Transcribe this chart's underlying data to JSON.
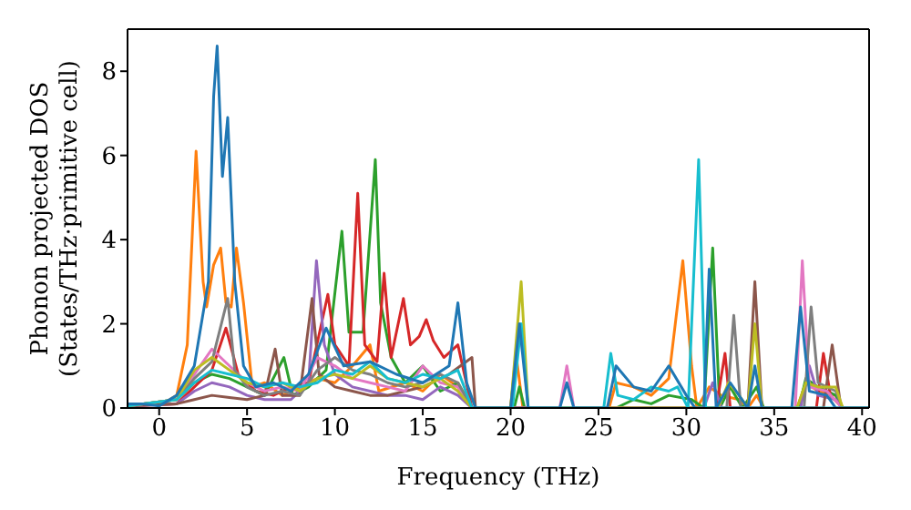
{
  "chart_data": {
    "type": "line",
    "xlabel": "Frequency (THz)",
    "ylabel": "Phonon projected DOS\n(States/THz·primitive cell)",
    "xlim": [
      -1.8,
      40.4
    ],
    "xticks": [
      0,
      5,
      10,
      15,
      20,
      25,
      30,
      35,
      40
    ],
    "ylim": [
      0,
      9
    ],
    "yticks": [
      0,
      2,
      4,
      6,
      8
    ],
    "series": [
      {
        "color": "#ff7f0e",
        "x": [
          0,
          1,
          1.6,
          2.1,
          2.5,
          2.7,
          3.1,
          3.5,
          3.8,
          4.1,
          4.4,
          4.8,
          5.3,
          6,
          7,
          8,
          9,
          10,
          11,
          12,
          12.5,
          14,
          15,
          16,
          17,
          17.8,
          20,
          20.3,
          20.7,
          25.6,
          26,
          27,
          28,
          29,
          29.8,
          30.3,
          30.6,
          31.3,
          32,
          33,
          33.5,
          34,
          34.4,
          36.3,
          36.8,
          37.5,
          38.5,
          38.9,
          40.4
        ],
        "values": [
          0.05,
          0.3,
          1.5,
          6.1,
          3,
          2.4,
          3.4,
          3.8,
          2.5,
          2.4,
          3.8,
          2.5,
          0.5,
          0.6,
          0.3,
          0.5,
          0.7,
          0.6,
          1.0,
          1.5,
          0.4,
          0.6,
          0.4,
          0.8,
          0.5,
          0,
          0,
          1.3,
          0,
          0,
          0.6,
          0.5,
          0.3,
          0.7,
          3.5,
          1,
          0,
          0.5,
          0.3,
          0.2,
          0,
          0.3,
          0,
          0,
          0.6,
          0.4,
          0.3,
          0,
          0
        ]
      },
      {
        "color": "#2ca02c",
        "x": [
          -1.8,
          1,
          2,
          3,
          4,
          5,
          6,
          7.1,
          7.6,
          8.5,
          9.5,
          10.4,
          10.8,
          11.6,
          12.3,
          12.6,
          13.2,
          14,
          15,
          16,
          17,
          17.8,
          20.2,
          20.5,
          20.8,
          26,
          27,
          28,
          29,
          30.3,
          31,
          31.5,
          31.9,
          32.5,
          33.2,
          34,
          34.4,
          36.4,
          36.8,
          37.5,
          38.5,
          38.9,
          40.4
        ],
        "values": [
          0.05,
          0.2,
          0.6,
          0.8,
          0.7,
          0.5,
          0.3,
          1.2,
          0.3,
          0.5,
          0.9,
          4.2,
          1.8,
          1.8,
          5.9,
          2.5,
          1.2,
          0.6,
          1.0,
          0.4,
          0.6,
          0,
          0,
          0.5,
          0,
          0,
          0.2,
          0.1,
          0.3,
          0.2,
          0,
          3.8,
          0,
          0.5,
          0,
          0.5,
          0,
          0,
          0.7,
          0.5,
          0.3,
          0,
          0
        ]
      },
      {
        "color": "#d62728",
        "x": [
          -1.8,
          1,
          2,
          3,
          3.8,
          4.5,
          5.5,
          6.5,
          7.5,
          8.5,
          9.6,
          10,
          10.8,
          11.3,
          11.7,
          12.4,
          12.8,
          13.2,
          13.9,
          14.3,
          14.8,
          15.2,
          15.6,
          16.2,
          17,
          17.8,
          31.7,
          32.2,
          32.5,
          37.4,
          37.8,
          38.2,
          38.9,
          40.4
        ],
        "values": [
          0.05,
          0.1,
          0.5,
          0.9,
          1.9,
          0.8,
          0.4,
          0.3,
          0.5,
          0.6,
          2.7,
          1.5,
          1.0,
          5.1,
          1.5,
          1.1,
          3.2,
          1.2,
          2.6,
          1.5,
          1.7,
          2.1,
          1.6,
          1.2,
          1.5,
          0,
          0,
          1.3,
          0,
          0,
          1.3,
          0.3,
          0,
          0
        ]
      },
      {
        "color": "#9467bd",
        "x": [
          -1.8,
          1,
          2,
          3,
          4,
          5,
          6,
          7.5,
          8.5,
          8.95,
          9.4,
          10,
          11,
          12,
          13,
          14,
          15,
          16,
          17,
          17.8,
          31,
          31.5,
          32,
          36.5,
          37,
          37.5,
          38.5,
          38.9,
          40.4
        ],
        "values": [
          0.05,
          0.1,
          0.4,
          0.6,
          0.5,
          0.3,
          0.2,
          0.2,
          0.6,
          3.5,
          1.5,
          0.8,
          0.5,
          0.4,
          0.3,
          0.3,
          0.2,
          0.5,
          0.3,
          0,
          0,
          0.6,
          0,
          0,
          1.0,
          0.3,
          0.2,
          0,
          0
        ]
      },
      {
        "color": "#8c564b",
        "x": [
          -1.8,
          1,
          2,
          3,
          4,
          5,
          6,
          6.6,
          7,
          8,
          8.7,
          9.1,
          10,
          11,
          12,
          13,
          14,
          15,
          16.5,
          17.8,
          18,
          33.5,
          33.9,
          34.3,
          37.8,
          38.3,
          38.8,
          40.4
        ],
        "values": [
          0.05,
          0.1,
          0.2,
          0.3,
          0.25,
          0.2,
          0.3,
          1.4,
          0.3,
          0.3,
          2.6,
          0.8,
          0.5,
          0.4,
          0.3,
          0.3,
          0.4,
          0.5,
          0.8,
          1.2,
          0,
          0,
          3.0,
          0,
          0,
          1.5,
          0,
          0
        ]
      },
      {
        "color": "#e377c2",
        "x": [
          -1.8,
          1,
          2,
          3,
          4,
          5,
          6,
          7,
          8,
          9,
          10,
          11,
          12,
          13,
          14,
          15,
          16,
          17,
          17.8,
          22.8,
          23.2,
          23.6,
          36.2,
          36.6,
          37,
          38,
          38.9,
          40.4
        ],
        "values": [
          0.05,
          0.2,
          0.8,
          1.4,
          1.0,
          0.6,
          0.4,
          0.5,
          0.4,
          1.2,
          1.0,
          0.7,
          0.6,
          0.5,
          0.4,
          1.0,
          0.6,
          0.5,
          0,
          0,
          1.0,
          0,
          0,
          3.5,
          0.5,
          0.4,
          0,
          0
        ]
      },
      {
        "color": "#7f7f7f",
        "x": [
          -1.8,
          1,
          2,
          3,
          3.9,
          4.3,
          5,
          6,
          7,
          8,
          9,
          10,
          11,
          12,
          13,
          14,
          15,
          16,
          17,
          17.8,
          32.3,
          32.7,
          33.1,
          36.7,
          37.1,
          37.5,
          38.5,
          38.9,
          40.4
        ],
        "values": [
          0.05,
          0.2,
          0.7,
          1.1,
          2.6,
          0.9,
          0.5,
          0.3,
          0.4,
          0.3,
          0.9,
          1.2,
          0.9,
          0.8,
          0.6,
          0.5,
          0.6,
          0.8,
          0.6,
          0,
          0,
          2.2,
          0,
          0,
          2.4,
          0.6,
          0.4,
          0,
          0
        ]
      },
      {
        "color": "#bcbd22",
        "x": [
          -1.8,
          1,
          2,
          3,
          4,
          5,
          6,
          7,
          8,
          9,
          10,
          11,
          12,
          13,
          14,
          15,
          16,
          17,
          17.8,
          20,
          20.6,
          21,
          31.8,
          32.4,
          33,
          33.5,
          33.9,
          34.3,
          36.3,
          36.8,
          37.5,
          38.5,
          38.9,
          40.4
        ],
        "values": [
          0.05,
          0.2,
          0.9,
          1.2,
          0.9,
          0.6,
          0.5,
          0.6,
          0.4,
          0.7,
          0.8,
          0.7,
          1.0,
          0.7,
          0.6,
          0.5,
          0.7,
          0.4,
          0,
          0,
          3.0,
          0,
          0,
          0.6,
          0.3,
          0,
          2.0,
          0,
          0,
          0.6,
          0.5,
          0.5,
          0,
          0
        ]
      },
      {
        "color": "#17becf",
        "x": [
          -1.8,
          1,
          2,
          3,
          4,
          5,
          6,
          7,
          8,
          9,
          10,
          11,
          12,
          13,
          14,
          15,
          16,
          17,
          17.8,
          20.1,
          20.6,
          21,
          25.3,
          25.7,
          26.1,
          27,
          28,
          29,
          29.5,
          30.1,
          30.7,
          31.1,
          40.4
        ],
        "values": [
          0.05,
          0.2,
          0.6,
          0.9,
          0.8,
          0.7,
          0.5,
          0.6,
          0.5,
          0.6,
          0.9,
          0.8,
          1.1,
          0.7,
          0.6,
          0.8,
          0.7,
          0.9,
          0,
          0,
          2.0,
          0,
          0,
          1.3,
          0.3,
          0.2,
          0.5,
          0.4,
          0.5,
          0,
          5.9,
          0,
          0
        ]
      },
      {
        "color": "#1f77b4",
        "x": [
          -1.8,
          -1,
          0,
          1,
          2,
          2.8,
          3.1,
          3.3,
          3.6,
          3.9,
          4.3,
          4.8,
          5.5,
          6.5,
          7.5,
          8.5,
          9.5,
          10.5,
          12,
          13.5,
          15,
          16.5,
          17,
          17.5,
          18,
          20,
          20.5,
          21,
          22.8,
          23.2,
          23.6,
          25.5,
          26,
          27,
          28,
          29,
          30,
          30.5,
          31,
          31.3,
          31.7,
          32.5,
          33.5,
          33.9,
          34.3,
          36,
          36.5,
          37,
          38,
          38.5,
          40.4
        ],
        "values": [
          0.1,
          0.1,
          0.05,
          0.3,
          1,
          3,
          7.4,
          8.6,
          5.5,
          6.9,
          3,
          1.0,
          0.5,
          0.6,
          0.4,
          0.8,
          1.9,
          1.0,
          1.1,
          0.8,
          0.6,
          1.0,
          2.5,
          0.6,
          0,
          0,
          2.0,
          0,
          0,
          0.6,
          0,
          0,
          1.0,
          0.5,
          0.4,
          1.0,
          0.3,
          0,
          0,
          3.3,
          0,
          0.6,
          0,
          1,
          0,
          0,
          2.4,
          0.4,
          0.3,
          0,
          0
        ]
      }
    ]
  }
}
